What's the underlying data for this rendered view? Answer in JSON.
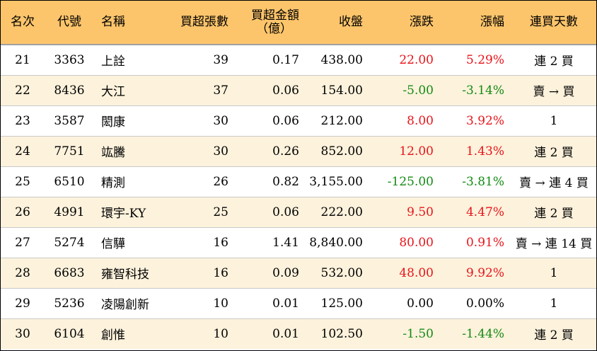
{
  "headers": {
    "rank": "名次",
    "code": "代號",
    "name": "名稱",
    "buy_lots": "買超張數",
    "buy_amount_line1": "買超金額",
    "buy_amount_line2": "（億）",
    "close": "收盤",
    "change": "漲跌",
    "pct": "漲幅",
    "streak": "連買天數"
  },
  "colors": {
    "header_bg": "#fdc56b",
    "alt_row_bg": "#fdf2dc",
    "up": "#e8141a",
    "down": "#138a13"
  },
  "rows": [
    {
      "rank": "21",
      "code": "3363",
      "name": "上詮",
      "buy_lots": "39",
      "buy_amount": "0.17",
      "close": "438.00",
      "change": "22.00",
      "pct": "5.29%",
      "streak": "連 2 買",
      "trend": "up"
    },
    {
      "rank": "22",
      "code": "8436",
      "name": "大江",
      "buy_lots": "37",
      "buy_amount": "0.06",
      "close": "154.00",
      "change": "-5.00",
      "pct": "-3.14%",
      "streak": "賣 → 買",
      "trend": "down"
    },
    {
      "rank": "23",
      "code": "3587",
      "name": "閎康",
      "buy_lots": "30",
      "buy_amount": "0.06",
      "close": "212.00",
      "change": "8.00",
      "pct": "3.92%",
      "streak": "1",
      "trend": "up"
    },
    {
      "rank": "24",
      "code": "7751",
      "name": "竑騰",
      "buy_lots": "30",
      "buy_amount": "0.26",
      "close": "852.00",
      "change": "12.00",
      "pct": "1.43%",
      "streak": "連 2 買",
      "trend": "up"
    },
    {
      "rank": "25",
      "code": "6510",
      "name": "精測",
      "buy_lots": "26",
      "buy_amount": "0.82",
      "close": "3,155.00",
      "change": "-125.00",
      "pct": "-3.81%",
      "streak": "賣 → 連 4 買",
      "trend": "down"
    },
    {
      "rank": "26",
      "code": "4991",
      "name": "環宇-KY",
      "buy_lots": "25",
      "buy_amount": "0.06",
      "close": "222.00",
      "change": "9.50",
      "pct": "4.47%",
      "streak": "連 2 買",
      "trend": "up"
    },
    {
      "rank": "27",
      "code": "5274",
      "name": "信驊",
      "buy_lots": "16",
      "buy_amount": "1.41",
      "close": "8,840.00",
      "change": "80.00",
      "pct": "0.91%",
      "streak": "賣 → 連 14 買",
      "trend": "up"
    },
    {
      "rank": "28",
      "code": "6683",
      "name": "雍智科技",
      "buy_lots": "16",
      "buy_amount": "0.09",
      "close": "532.00",
      "change": "48.00",
      "pct": "9.92%",
      "streak": "1",
      "trend": "up"
    },
    {
      "rank": "29",
      "code": "5236",
      "name": "凌陽創新",
      "buy_lots": "10",
      "buy_amount": "0.01",
      "close": "125.00",
      "change": "0.00",
      "pct": "0.00%",
      "streak": "1",
      "trend": "flat"
    },
    {
      "rank": "30",
      "code": "6104",
      "name": "創惟",
      "buy_lots": "10",
      "buy_amount": "0.01",
      "close": "102.50",
      "change": "-1.50",
      "pct": "-1.44%",
      "streak": "連 2 買",
      "trend": "down"
    }
  ]
}
